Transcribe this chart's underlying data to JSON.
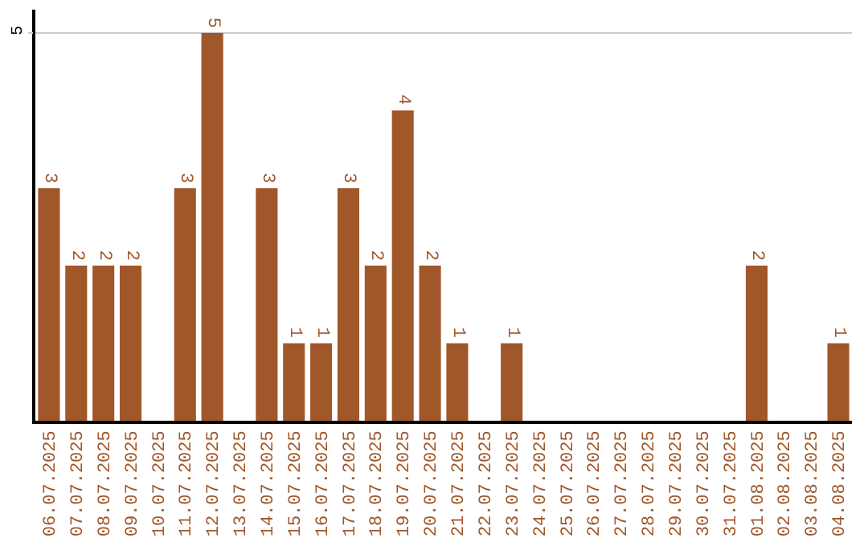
{
  "chart_data": {
    "type": "bar",
    "categories": [
      "06.07.2025",
      "07.07.2025",
      "08.07.2025",
      "09.07.2025",
      "10.07.2025",
      "11.07.2025",
      "12.07.2025",
      "13.07.2025",
      "14.07.2025",
      "15.07.2025",
      "16.07.2025",
      "17.07.2025",
      "18.07.2025",
      "19.07.2025",
      "20.07.2025",
      "21.07.2025",
      "22.07.2025",
      "23.07.2025",
      "24.07.2025",
      "25.07.2025",
      "26.07.2025",
      "27.07.2025",
      "28.07.2025",
      "29.07.2025",
      "30.07.2025",
      "31.07.2025",
      "01.08.2025",
      "02.08.2025",
      "03.08.2025",
      "04.08.2025"
    ],
    "values": [
      3,
      2,
      2,
      2,
      0,
      3,
      5,
      0,
      3,
      1,
      1,
      3,
      2,
      4,
      2,
      1,
      0,
      1,
      0,
      0,
      0,
      0,
      0,
      0,
      0,
      0,
      2,
      0,
      0,
      1
    ],
    "value_labels": [
      "3",
      "2",
      "2",
      "2",
      null,
      "3",
      "5",
      null,
      "3",
      "1",
      "1",
      "3",
      "2",
      "4",
      "2",
      "1",
      null,
      "1",
      null,
      null,
      null,
      null,
      null,
      null,
      null,
      null,
      "2",
      null,
      null,
      "1"
    ],
    "color": "#a0572a",
    "ylim": [
      0,
      5.3
    ],
    "yticks": [
      5
    ],
    "grid": "y",
    "legend": false
  }
}
